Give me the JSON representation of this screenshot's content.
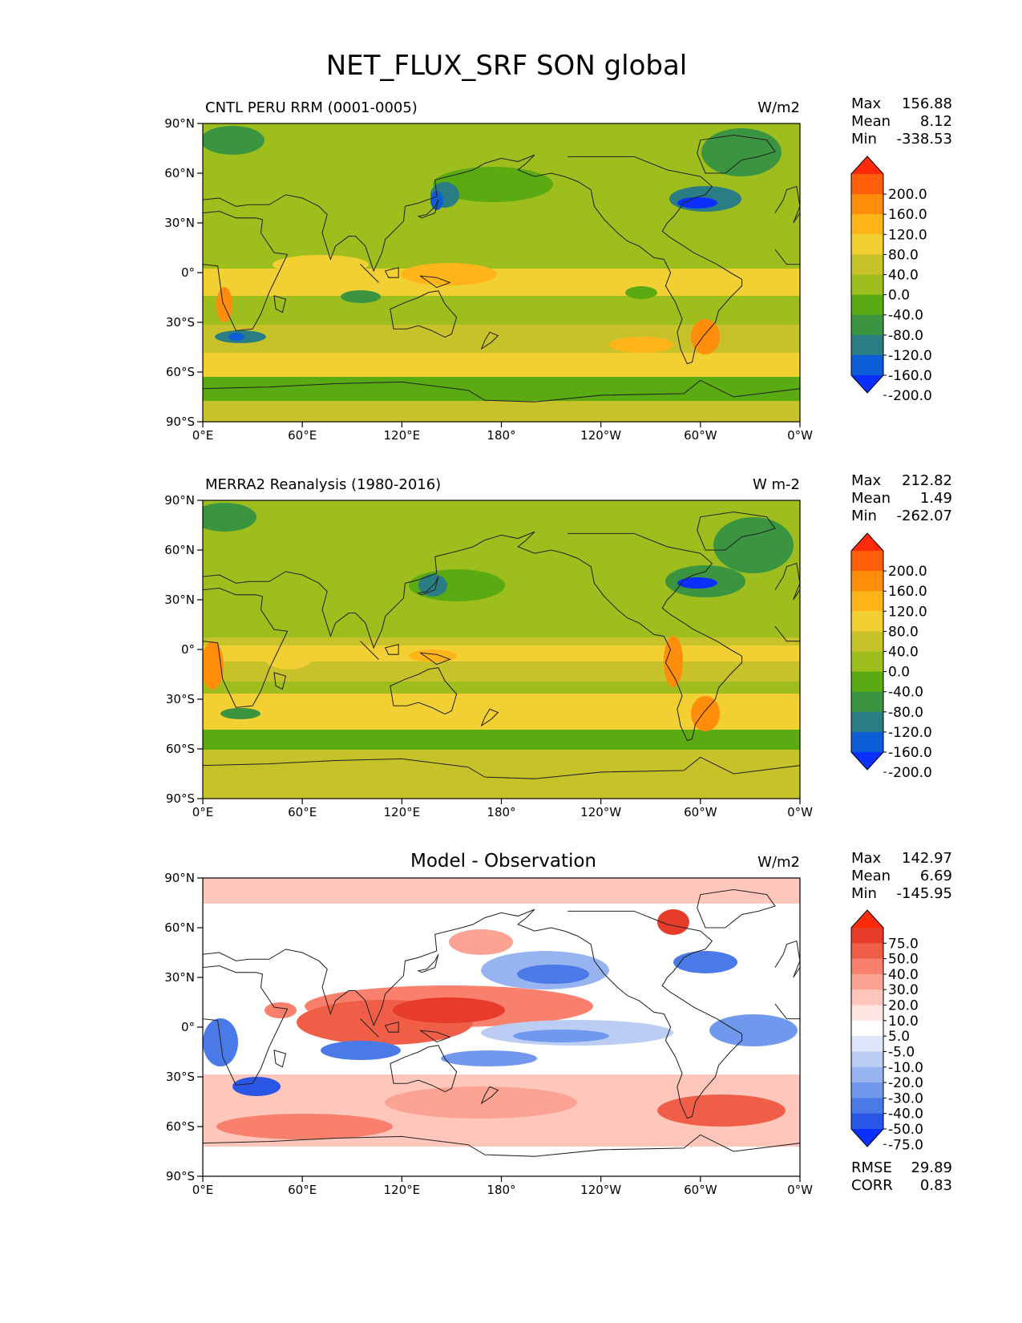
{
  "figure_title": "NET_FLUX_SRF SON global",
  "palettes": {
    "field": [
      "#0a2fff",
      "#0b5ed6",
      "#2a7d82",
      "#3a9440",
      "#5aaa12",
      "#9ebe1e",
      "#c8c22a",
      "#f2d033",
      "#ffb419",
      "#ff8c0a",
      "#ff5f0a",
      "#ff2a0a"
    ],
    "diff": [
      "#0a2fff",
      "#2a56e6",
      "#4a7ae8",
      "#7098ec",
      "#97b4f0",
      "#bccdf4",
      "#dde6fa",
      "#ffffff",
      "#ffe4df",
      "#ffc6bc",
      "#fca393",
      "#f8806c",
      "#f15e48",
      "#e83c2a",
      "#ff2a0a"
    ]
  },
  "panels": [
    {
      "title": "CNTL PERU RRM (0001-0005)",
      "units": "W/m2",
      "stats": {
        "max_label": "Max",
        "max": "156.88",
        "mean_label": "Mean",
        "mean": "8.12",
        "min_label": "Min",
        "min": "-338.53"
      },
      "colorbar": {
        "ticks": [
          "200.0",
          "160.0",
          "120.0",
          "80.0",
          "40.0",
          "0.0",
          "-40.0",
          "-80.0",
          "-120.0",
          "-160.0",
          "-200.0"
        ]
      }
    },
    {
      "title": "MERRA2 Reanalysis (1980-2016)",
      "units": "W m-2",
      "stats": {
        "max_label": "Max",
        "max": "212.82",
        "mean_label": "Mean",
        "mean": "1.49",
        "min_label": "Min",
        "min": "-262.07"
      },
      "colorbar": {
        "ticks": [
          "200.0",
          "160.0",
          "120.0",
          "80.0",
          "40.0",
          "0.0",
          "-40.0",
          "-80.0",
          "-120.0",
          "-160.0",
          "-200.0"
        ]
      }
    },
    {
      "title": "Model - Observation",
      "units": "W/m2",
      "stats": {
        "max_label": "Max",
        "max": "142.97",
        "mean_label": "Mean",
        "mean": "6.69",
        "min_label": "Min",
        "min": "-145.95"
      },
      "colorbar": {
        "ticks": [
          "75.0",
          "50.0",
          "40.0",
          "30.0",
          "20.0",
          "10.0",
          "5.0",
          "-5.0",
          "-10.0",
          "-20.0",
          "-30.0",
          "-40.0",
          "-50.0",
          "-75.0"
        ]
      },
      "rmse_label": "RMSE",
      "rmse": "29.89",
      "corr_label": "CORR",
      "corr": "0.83"
    }
  ],
  "chart_data": {
    "type": "heatmap",
    "title": "NET_FLUX_SRF SON global",
    "x_ticks": [
      "0°E",
      "60°E",
      "120°E",
      "180°",
      "120°W",
      "60°W",
      "0°W"
    ],
    "y_ticks": [
      "90°N",
      "60°N",
      "30°N",
      "0°",
      "30°S",
      "60°S",
      "90°S"
    ],
    "xlim": [
      0,
      360
    ],
    "ylim": [
      -90,
      90
    ],
    "fields": [
      {
        "name": "CNTL PERU RRM (0001-0005)",
        "units": "W/m2",
        "levels": [
          -200,
          -160,
          -120,
          -80,
          -40,
          0,
          40,
          80,
          120,
          160,
          200
        ]
      },
      {
        "name": "MERRA2 Reanalysis (1980-2016)",
        "units": "W m-2",
        "levels": [
          -200,
          -160,
          -120,
          -80,
          -40,
          0,
          40,
          80,
          120,
          160,
          200
        ]
      },
      {
        "name": "Model - Observation",
        "units": "W/m2",
        "levels": [
          -75,
          -50,
          -40,
          -30,
          -20,
          -10,
          -5,
          5,
          10,
          20,
          30,
          40,
          50,
          75
        ]
      }
    ]
  }
}
